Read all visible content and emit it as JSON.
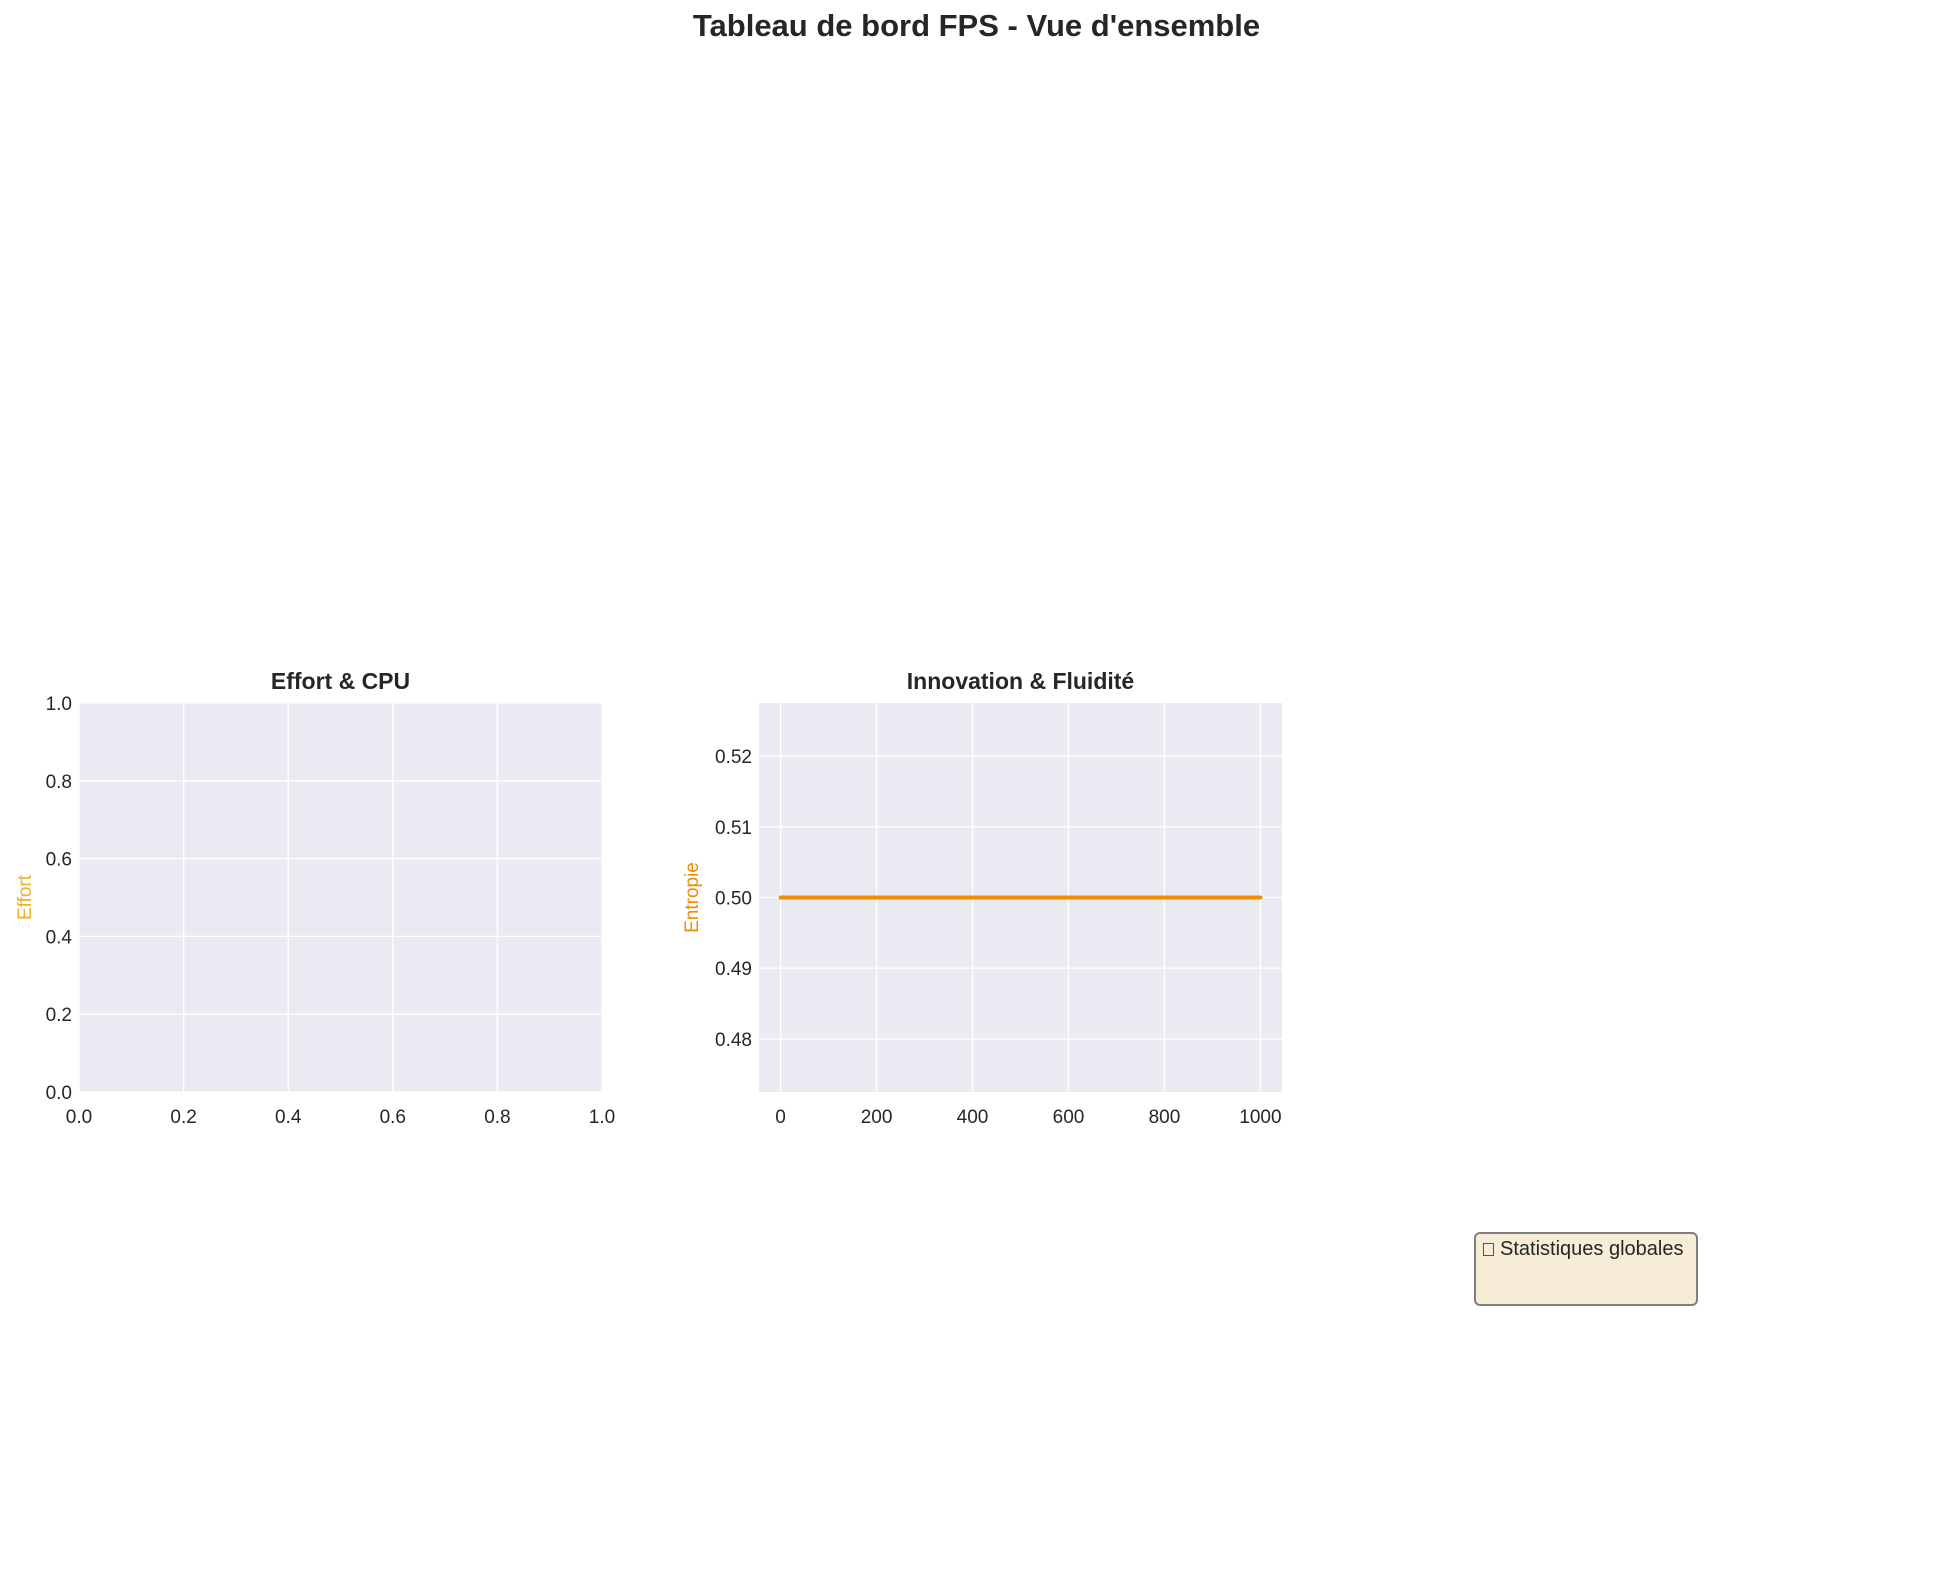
{
  "page": {
    "title": "Tableau de bord FPS - Vue d'ensemble"
  },
  "chart_data": [
    {
      "type": "line",
      "title": "Effort & CPU",
      "xlabel": "",
      "ylabel": "Effort",
      "ylabel_color": "#f0b020",
      "xlim": [
        0.0,
        1.0
      ],
      "ylim": [
        0.0,
        1.0
      ],
      "xticks": [
        "0.0",
        "0.2",
        "0.4",
        "0.6",
        "0.8",
        "1.0"
      ],
      "yticks": [
        "0.0",
        "0.2",
        "0.4",
        "0.6",
        "0.8",
        "1.0"
      ],
      "grid": true,
      "background": "#eaeaf2",
      "series": []
    },
    {
      "type": "line",
      "title": "Innovation & Fluidité",
      "xlabel": "",
      "ylabel": "Entropie",
      "ylabel_color": "#f08a00",
      "xlim": [
        -45,
        1045
      ],
      "ylim": [
        0.4725,
        0.5275
      ],
      "xticks": [
        "0",
        "200",
        "400",
        "600",
        "800",
        "1000"
      ],
      "yticks": [
        "0.48",
        "0.49",
        "0.50",
        "0.51",
        "0.52"
      ],
      "grid": true,
      "background": "#eaeaf2",
      "series": [
        {
          "color": "#f08a00",
          "x": [
            0,
            1000
          ],
          "y": [
            0.5,
            0.5
          ]
        }
      ]
    }
  ],
  "stats": {
    "label": "Statistiques globales",
    "icon": "chart-icon"
  }
}
